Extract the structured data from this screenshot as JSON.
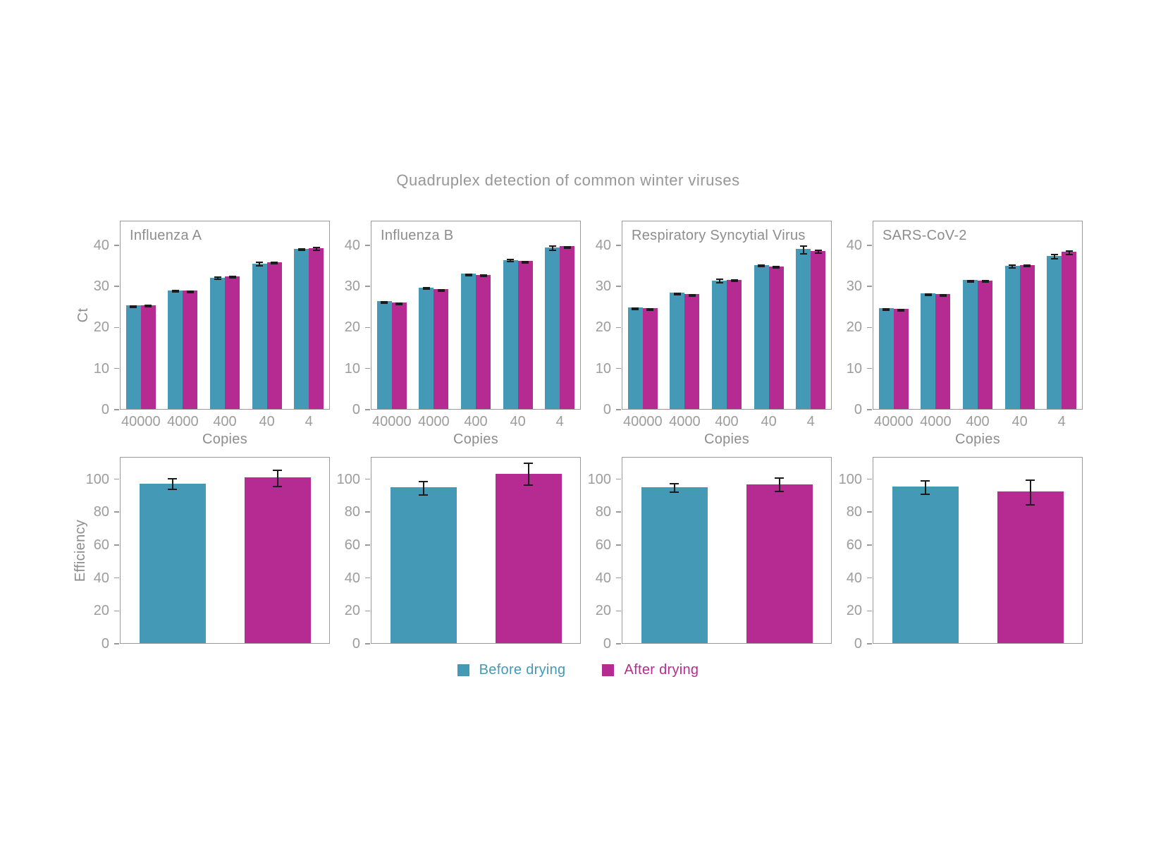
{
  "title": "Quadruplex detection of common winter viruses",
  "colors": {
    "before": "#4399b6",
    "after": "#b52b91",
    "error_bar": "#1b1b1b",
    "axis_spine": "#9a9a9a",
    "tick_label": "#9c9c9c",
    "text_label": "#8d8d8d",
    "background": "#ffffff"
  },
  "legend": {
    "position": "bottom center",
    "items": [
      {
        "label": "Before drying",
        "color": "#4399b6"
      },
      {
        "label": "After drying",
        "color": "#b52b91"
      }
    ]
  },
  "chart_data": {
    "type": "bar",
    "layout": "2 rows x 4 columns small multiples, grid off, legend bottom center",
    "title": "Quadruplex detection of common winter viruses",
    "categories": [
      "40000",
      "4000",
      "400",
      "40",
      "4"
    ],
    "xlabel": "Copies",
    "series_names": [
      "Before drying",
      "After drying"
    ],
    "rows": [
      {
        "name": "ct",
        "ylabel": "Ct",
        "ylim": [
          0,
          46
        ],
        "yticks": [
          0,
          10,
          20,
          30,
          40
        ]
      },
      {
        "name": "efficiency",
        "ylabel": "Efficiency",
        "ylim": [
          0,
          113.5
        ],
        "yticks": [
          0,
          20,
          40,
          60,
          80,
          100
        ]
      }
    ],
    "panels": [
      {
        "title": "Influenza A",
        "ct": {
          "before": {
            "values": [
              25.2,
              28.9,
              32.0,
              35.4,
              39.0
            ],
            "errors": [
              0.2,
              0.2,
              0.5,
              0.6,
              0.3
            ]
          },
          "after": {
            "values": [
              25.3,
              28.8,
              32.3,
              35.7,
              39.2
            ],
            "errors": [
              0.2,
              0.2,
              0.3,
              0.3,
              0.5
            ]
          }
        },
        "efficiency": {
          "before": {
            "value": 97.0,
            "error": 3.5
          },
          "after": {
            "value": 100.5,
            "error": 5.5
          }
        }
      },
      {
        "title": "Influenza B",
        "ct": {
          "before": {
            "values": [
              26.2,
              29.6,
              32.9,
              36.3,
              39.3
            ],
            "errors": [
              0.2,
              0.3,
              0.3,
              0.5,
              0.7
            ]
          },
          "after": {
            "values": [
              25.9,
              29.2,
              32.6,
              36.0,
              39.6
            ],
            "errors": [
              0.2,
              0.2,
              0.3,
              0.3,
              0.2
            ]
          }
        },
        "efficiency": {
          "before": {
            "value": 94.5,
            "error": 4.5
          },
          "after": {
            "value": 103.0,
            "error": 7.0
          }
        }
      },
      {
        "title": "Respiratory Syncytial Virus",
        "ct": {
          "before": {
            "values": [
              24.7,
              28.3,
              31.3,
              35.0,
              38.9
            ],
            "errors": [
              0.2,
              0.2,
              0.6,
              0.4,
              1.1
            ]
          },
          "after": {
            "values": [
              24.5,
              28.0,
              31.4,
              34.7,
              38.4
            ],
            "errors": [
              0.2,
              0.2,
              0.3,
              0.4,
              0.5
            ]
          }
        },
        "efficiency": {
          "before": {
            "value": 94.5,
            "error": 3.0
          },
          "after": {
            "value": 96.5,
            "error": 4.5
          }
        }
      },
      {
        "title": "SARS-CoV-2",
        "ct": {
          "before": {
            "values": [
              24.5,
              28.2,
              31.4,
              34.9,
              37.3
            ],
            "errors": [
              0.2,
              0.2,
              0.2,
              0.5,
              0.7
            ]
          },
          "after": {
            "values": [
              24.4,
              28.0,
              31.3,
              35.0,
              38.2
            ],
            "errors": [
              0.2,
              0.2,
              0.3,
              0.3,
              0.6
            ]
          }
        },
        "efficiency": {
          "before": {
            "value": 95.0,
            "error": 4.5
          },
          "after": {
            "value": 92.0,
            "error": 8.0
          }
        }
      }
    ]
  }
}
